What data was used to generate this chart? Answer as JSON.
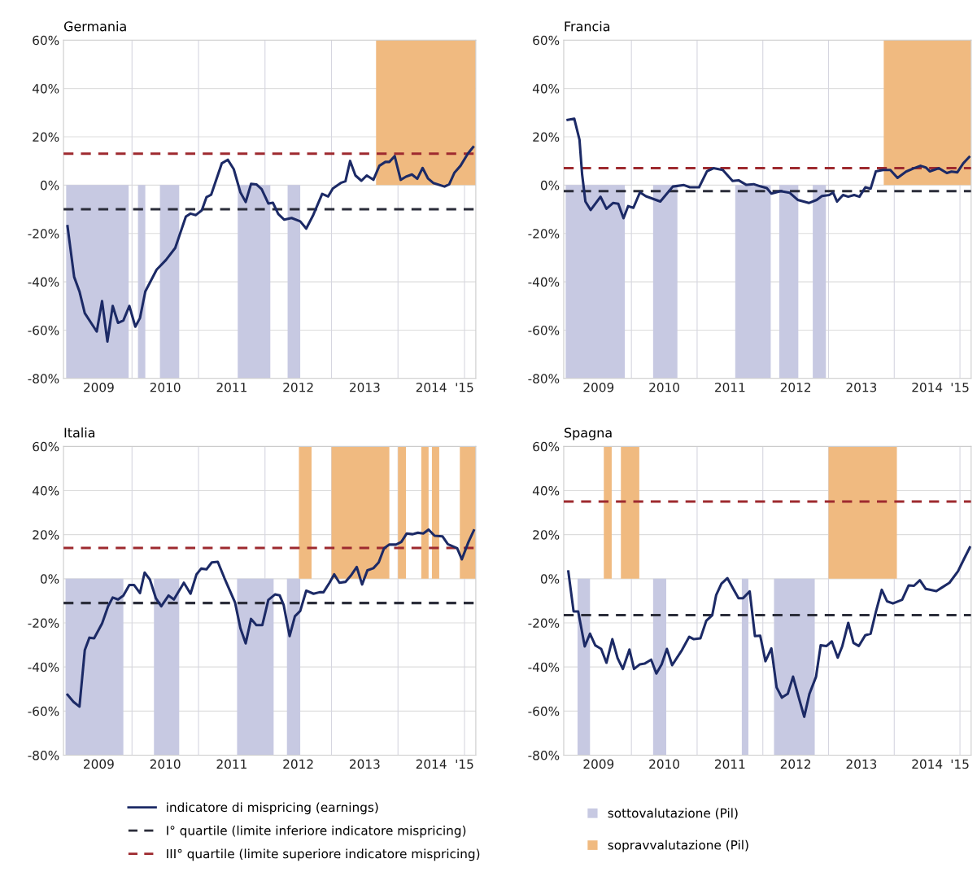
{
  "chart_data": [
    {
      "type": "line",
      "title": "Germania",
      "xlim": [
        2008.97,
        2015.17
      ],
      "ylim": [
        -80,
        60
      ],
      "xticks": [
        {
          "value": 2009.5,
          "label": "2009"
        },
        {
          "value": 2010.5,
          "label": "2010"
        },
        {
          "value": 2011.5,
          "label": "2011"
        },
        {
          "value": 2012.5,
          "label": "2012"
        },
        {
          "value": 2013.5,
          "label": "2013"
        },
        {
          "value": 2014.5,
          "label": "2014"
        },
        {
          "value": 2015,
          "label": "'15"
        },
        {
          "value": 2010,
          "label": null
        },
        {
          "value": 2011,
          "label": null
        },
        {
          "value": 2012,
          "label": null
        },
        {
          "value": 2013,
          "label": null
        },
        {
          "value": 2014,
          "label": null
        },
        {
          "value": 2015,
          "label": null
        }
      ],
      "yticks": [
        {
          "value": -80,
          "label": "-80%"
        },
        {
          "value": -60,
          "label": "-60%"
        },
        {
          "value": -40,
          "label": "-40%"
        },
        {
          "value": -20,
          "label": "-20%"
        },
        {
          "value": 0,
          "label": "0%"
        },
        {
          "value": 20,
          "label": "20%"
        },
        {
          "value": 40,
          "label": "40%"
        },
        {
          "value": 60,
          "label": "60%"
        }
      ],
      "grid": true,
      "legend": "bottom",
      "series": [
        {
          "type": "area",
          "name": "sottovalutazione (Pil)",
          "color": "#c7c9e2",
          "x": [
            2009.01,
            2009.01,
            2009.95,
            2009.95,
            2010.09,
            2010.09,
            2010.2,
            2010.2,
            2010.42,
            2010.42,
            2010.71,
            2010.71,
            2011.59,
            2011.59,
            2012.08,
            2012.08,
            2012.34,
            2012.34,
            2012.53,
            2012.53
          ],
          "values": [
            0,
            -80,
            -80,
            0,
            0,
            -80,
            -80,
            0,
            0,
            -80,
            -80,
            0,
            0,
            -80,
            -80,
            0,
            0,
            -80,
            -80,
            0
          ]
        },
        {
          "type": "area",
          "name": "sopravvalutazione (Pil)",
          "color": "#f0ba80",
          "x": [
            2013.67,
            2013.67,
            2015.17,
            2015.17
          ],
          "values": [
            0,
            60,
            60,
            0
          ]
        },
        {
          "name": "indicatore di mispricing (earnings)",
          "color": "#1c2a66",
          "x": [
            2009.03,
            2009.13,
            2009.21,
            2009.29,
            2009.47,
            2009.55,
            2009.63,
            2009.71,
            2009.79,
            2009.87,
            2009.96,
            2010.05,
            2010.12,
            2010.2,
            2010.37,
            2010.51,
            2010.65,
            2010.81,
            2010.88,
            2010.96,
            2011.05,
            2011.12,
            2011.19,
            2011.35,
            2011.44,
            2011.53,
            2011.63,
            2011.71,
            2011.79,
            2011.87,
            2011.95,
            2012.05,
            2012.12,
            2012.2,
            2012.29,
            2012.4,
            2012.53,
            2012.62,
            2012.72,
            2012.86,
            2012.95,
            2013.02,
            2013.14,
            2013.21,
            2013.28,
            2013.36,
            2013.45,
            2013.53,
            2013.63,
            2013.72,
            2013.81,
            2013.87,
            2013.95,
            2014.04,
            2014.12,
            2014.21,
            2014.29,
            2014.37,
            2014.45,
            2014.53,
            2014.7,
            2014.77,
            2014.85,
            2014.94,
            2015.05,
            2015.13
          ],
          "values": [
            -17,
            -38,
            -44,
            -53,
            -60.6,
            -48,
            -64.7,
            -50,
            -57,
            -56,
            -50,
            -58.6,
            -55,
            -44,
            -35,
            -31,
            -26,
            -13,
            -11.8,
            -12.4,
            -10.4,
            -5,
            -4,
            9,
            10.5,
            6.6,
            -3,
            -7,
            0.5,
            0.3,
            -1.7,
            -7.6,
            -7.3,
            -12,
            -14.3,
            -13.6,
            -15,
            -18,
            -12.7,
            -3.6,
            -4.7,
            -1.4,
            0.9,
            1.6,
            10,
            4,
            1.8,
            4,
            2.2,
            8,
            9.6,
            9.6,
            12,
            2.2,
            3.5,
            4.4,
            2.6,
            7.1,
            2.8,
            0.9,
            -0.6,
            0.3,
            5.2,
            8,
            13,
            15.7
          ]
        }
      ],
      "ref_lines": [
        {
          "axis": "y",
          "value": -10,
          "label": "I° quartile (limite inferiore indicatore mispricing)",
          "color": "#2b2d3a",
          "line_style": "dashed"
        },
        {
          "axis": "y",
          "value": 13,
          "label": "III° quartile (limite superiore indicatore mispricing)",
          "color": "#9e2a2f",
          "line_style": "dashed"
        }
      ]
    },
    {
      "type": "line",
      "title": "Francia",
      "xlim": [
        2008.97,
        2015.17
      ],
      "ylim": [
        -80,
        60
      ],
      "xticks": [
        {
          "value": 2009.5,
          "label": "2009"
        },
        {
          "value": 2010.5,
          "label": "2010"
        },
        {
          "value": 2011.5,
          "label": "2011"
        },
        {
          "value": 2012.5,
          "label": "2012"
        },
        {
          "value": 2013.5,
          "label": "2013"
        },
        {
          "value": 2014.5,
          "label": "2014"
        },
        {
          "value": 2015,
          "label": "'15"
        },
        {
          "value": 2010,
          "label": null
        },
        {
          "value": 2011,
          "label": null
        },
        {
          "value": 2012,
          "label": null
        },
        {
          "value": 2013,
          "label": null
        },
        {
          "value": 2014,
          "label": null
        },
        {
          "value": 2015,
          "label": null
        }
      ],
      "yticks": [
        {
          "value": -80,
          "label": "-80%"
        },
        {
          "value": -60,
          "label": "-60%"
        },
        {
          "value": -40,
          "label": "-40%"
        },
        {
          "value": -20,
          "label": "-20%"
        },
        {
          "value": 0,
          "label": "0%"
        },
        {
          "value": 20,
          "label": "20%"
        },
        {
          "value": 40,
          "label": "40%"
        },
        {
          "value": 60,
          "label": "60%"
        }
      ],
      "grid": true,
      "series": [
        {
          "type": "area",
          "color": "#c7c9e2",
          "x": [
            2009.0,
            2009.0,
            2009.9,
            2009.9,
            2010.33,
            2010.33,
            2010.7,
            2010.7,
            2011.58,
            2011.58,
            2012.12,
            2012.12,
            2012.25,
            2012.25,
            2012.54,
            2012.54,
            2012.76,
            2012.76,
            2012.96,
            2012.96
          ],
          "values": [
            0,
            -80,
            -80,
            0,
            0,
            -80,
            -80,
            0,
            0,
            -80,
            -80,
            0,
            0,
            -80,
            -80,
            0,
            0,
            -80,
            -80,
            0
          ]
        },
        {
          "type": "area",
          "color": "#f0ba80",
          "x": [
            2013.84,
            2013.84,
            2015.17,
            2015.17
          ],
          "values": [
            0,
            60,
            60,
            0
          ]
        },
        {
          "color": "#1c2a66",
          "x": [
            2009.03,
            2009.13,
            2009.21,
            2009.25,
            2009.3,
            2009.38,
            2009.53,
            2009.62,
            2009.72,
            2009.8,
            2009.88,
            2009.95,
            2010.03,
            2010.13,
            2010.22,
            2010.44,
            2010.52,
            2010.63,
            2010.8,
            2010.89,
            2011.03,
            2011.15,
            2011.25,
            2011.39,
            2011.54,
            2011.63,
            2011.75,
            2011.86,
            2011.96,
            2012.06,
            2012.13,
            2012.27,
            2012.41,
            2012.53,
            2012.7,
            2012.82,
            2012.9,
            2013.01,
            2013.07,
            2013.13,
            2013.22,
            2013.3,
            2013.39,
            2013.47,
            2013.56,
            2013.64,
            2013.72,
            2013.83,
            2013.94,
            2014.05,
            2014.18,
            2014.3,
            2014.4,
            2014.48,
            2014.54,
            2014.68,
            2014.8,
            2014.87,
            2014.96,
            2015.05,
            2015.14
          ],
          "values": [
            27,
            27.5,
            18.8,
            4.4,
            -6.8,
            -10.3,
            -4.8,
            -9.8,
            -7.4,
            -7.7,
            -13.7,
            -8.7,
            -9.4,
            -3,
            -4.6,
            -6.8,
            -4.2,
            -0.6,
            0,
            -0.9,
            -0.9,
            5.7,
            7,
            6.3,
            1.7,
            2,
            0.1,
            0.4,
            -0.5,
            -1.2,
            -3.5,
            -2.5,
            -3.2,
            -6.1,
            -7.4,
            -6.1,
            -4.5,
            -4.1,
            -3.1,
            -6.8,
            -4.1,
            -4.8,
            -4.1,
            -4.8,
            -0.9,
            -1.5,
            5.7,
            6.3,
            6.3,
            3,
            5.6,
            7,
            8,
            7.3,
            5.7,
            7,
            5,
            5.6,
            5.3,
            9,
            11.6
          ]
        }
      ],
      "ref_lines": [
        {
          "axis": "y",
          "value": -2.5,
          "color": "#2b2d3a",
          "line_style": "dashed"
        },
        {
          "axis": "y",
          "value": 7,
          "color": "#9e2a2f",
          "line_style": "dashed"
        }
      ]
    },
    {
      "type": "line",
      "title": "Italia",
      "xlim": [
        2008.97,
        2015.17
      ],
      "ylim": [
        -80,
        60
      ],
      "xticks": [
        {
          "value": 2009.5,
          "label": "2009"
        },
        {
          "value": 2010.5,
          "label": "2010"
        },
        {
          "value": 2011.5,
          "label": "2011"
        },
        {
          "value": 2012.5,
          "label": "2012"
        },
        {
          "value": 2013.5,
          "label": "2013"
        },
        {
          "value": 2014.5,
          "label": "2014"
        },
        {
          "value": 2015,
          "label": "'15"
        },
        {
          "value": 2010,
          "label": null
        },
        {
          "value": 2011,
          "label": null
        },
        {
          "value": 2012,
          "label": null
        },
        {
          "value": 2013,
          "label": null
        },
        {
          "value": 2014,
          "label": null
        },
        {
          "value": 2015,
          "label": null
        }
      ],
      "yticks": [
        {
          "value": -80,
          "label": "-80%"
        },
        {
          "value": -60,
          "label": "-60%"
        },
        {
          "value": -40,
          "label": "-40%"
        },
        {
          "value": -20,
          "label": "-20%"
        },
        {
          "value": 0,
          "label": "0%"
        },
        {
          "value": 20,
          "label": "20%"
        },
        {
          "value": 40,
          "label": "40%"
        },
        {
          "value": 60,
          "label": "60%"
        }
      ],
      "grid": true,
      "series": [
        {
          "type": "area",
          "color": "#c7c9e2",
          "x": [
            2009.0,
            2009.0,
            2009.87,
            2009.87,
            2010.33,
            2010.33,
            2010.71,
            2010.71,
            2011.58,
            2011.58,
            2012.13,
            2012.13,
            2012.33,
            2012.33,
            2012.53,
            2012.53
          ],
          "values": [
            0,
            -80,
            -80,
            0,
            0,
            -80,
            -80,
            0,
            0,
            -80,
            -80,
            0,
            0,
            -80,
            -80,
            0
          ]
        },
        {
          "type": "area",
          "color": "#f0ba80",
          "x": [
            2012.51,
            2012.51,
            2012.7,
            2012.7,
            2013.0,
            2013.0,
            2013.87,
            2013.87,
            2014.0,
            2014.0,
            2014.12,
            2014.12,
            2014.35,
            2014.35,
            2014.46,
            2014.46,
            2014.51,
            2014.51,
            2014.62,
            2014.62,
            2014.93,
            2014.93,
            2015.17,
            2015.17
          ],
          "values": [
            0,
            60,
            60,
            0,
            0,
            60,
            60,
            0,
            0,
            60,
            60,
            0,
            0,
            60,
            60,
            0,
            0,
            60,
            60,
            0,
            0,
            60,
            60,
            0
          ]
        },
        {
          "color": "#1c2a66",
          "x": [
            2009.03,
            2009.12,
            2009.21,
            2009.29,
            2009.36,
            2009.43,
            2009.55,
            2009.64,
            2009.71,
            2009.79,
            2009.87,
            2009.96,
            2010.03,
            2010.12,
            2010.19,
            2010.27,
            2010.36,
            2010.44,
            2010.55,
            2010.63,
            2010.78,
            2010.88,
            2010.97,
            2011.04,
            2011.12,
            2011.2,
            2011.29,
            2011.39,
            2011.55,
            2011.63,
            2011.71,
            2011.79,
            2011.87,
            2011.96,
            2012.05,
            2012.15,
            2012.22,
            2012.28,
            2012.37,
            2012.45,
            2012.53,
            2012.62,
            2012.73,
            2012.82,
            2012.88,
            2012.97,
            2013.04,
            2013.12,
            2013.21,
            2013.29,
            2013.38,
            2013.46,
            2013.54,
            2013.63,
            2013.71,
            2013.79,
            2013.87,
            2013.97,
            2014.05,
            2014.13,
            2014.22,
            2014.3,
            2014.38,
            2014.46,
            2014.55,
            2014.67,
            2014.75,
            2014.89,
            2014.96,
            2015.06,
            2015.14
          ],
          "values": [
            -52.6,
            -55.8,
            -58,
            -32.4,
            -26.7,
            -27,
            -20.3,
            -12.5,
            -8.5,
            -9.4,
            -7.6,
            -2.8,
            -2.8,
            -6.5,
            2.8,
            -0.4,
            -8.9,
            -12.5,
            -7.6,
            -9.4,
            -1.8,
            -6.8,
            2,
            4.6,
            4.3,
            7.4,
            7.7,
            0.3,
            -10.8,
            -22.4,
            -29.3,
            -18.2,
            -21,
            -21,
            -9.6,
            -7.1,
            -7.5,
            -11.8,
            -26,
            -17,
            -14.6,
            -5.4,
            -6.8,
            -6.1,
            -6.1,
            -1.8,
            2,
            -1.8,
            -1.4,
            1.4,
            5.3,
            -2.6,
            3.8,
            4.8,
            7.4,
            13.8,
            15.5,
            15.5,
            16.7,
            20.5,
            20.2,
            20.9,
            20.5,
            22.3,
            19.5,
            19.2,
            15.7,
            13.8,
            8.8,
            16.7,
            21.9
          ]
        }
      ],
      "ref_lines": [
        {
          "axis": "y",
          "value": -11,
          "color": "#2b2d3a",
          "line_style": "dashed"
        },
        {
          "axis": "y",
          "value": 14,
          "color": "#9e2a2f",
          "line_style": "dashed"
        }
      ]
    },
    {
      "type": "line",
      "title": "Spagna",
      "xlim": [
        2008.97,
        2015.17
      ],
      "ylim": [
        -80,
        60
      ],
      "xticks": [
        {
          "value": 2009.5,
          "label": "2009"
        },
        {
          "value": 2010.5,
          "label": "2010"
        },
        {
          "value": 2011.5,
          "label": "2011"
        },
        {
          "value": 2012.5,
          "label": "2012"
        },
        {
          "value": 2013.5,
          "label": "2013"
        },
        {
          "value": 2014.5,
          "label": "2014"
        },
        {
          "value": 2015,
          "label": "'15"
        },
        {
          "value": 2010,
          "label": null
        },
        {
          "value": 2011,
          "label": null
        },
        {
          "value": 2012,
          "label": null
        },
        {
          "value": 2013,
          "label": null
        },
        {
          "value": 2014,
          "label": null
        },
        {
          "value": 2015,
          "label": null
        }
      ],
      "yticks": [
        {
          "value": -80,
          "label": "-80%"
        },
        {
          "value": -60,
          "label": "-60%"
        },
        {
          "value": -40,
          "label": "-40%"
        },
        {
          "value": -20,
          "label": "-20%"
        },
        {
          "value": 0,
          "label": "0%"
        },
        {
          "value": 20,
          "label": "20%"
        },
        {
          "value": 40,
          "label": "40%"
        },
        {
          "value": 60,
          "label": "60%"
        }
      ],
      "grid": true,
      "series": [
        {
          "type": "area",
          "color": "#c7c9e2",
          "x": [
            2009.18,
            2009.18,
            2009.37,
            2009.37,
            2010.33,
            2010.33,
            2010.53,
            2010.53,
            2011.68,
            2011.68,
            2011.78,
            2011.78,
            2012.17,
            2012.17,
            2012.79,
            2012.79
          ],
          "values": [
            0,
            -80,
            -80,
            0,
            0,
            -80,
            -80,
            0,
            0,
            -80,
            -80,
            0,
            0,
            -80,
            -80,
            0
          ]
        },
        {
          "type": "area",
          "color": "#f0ba80",
          "x": [
            2009.58,
            2009.58,
            2009.7,
            2009.7,
            2009.84,
            2009.84,
            2010.12,
            2010.12,
            2013.0,
            2013.0,
            2014.04,
            2014.04
          ],
          "values": [
            0,
            60,
            60,
            0,
            0,
            60,
            60,
            0,
            0,
            60,
            60,
            0
          ]
        },
        {
          "color": "#1c2a66",
          "x": [
            2009.04,
            2009.12,
            2009.19,
            2009.29,
            2009.37,
            2009.45,
            2009.54,
            2009.62,
            2009.71,
            2009.79,
            2009.87,
            2009.97,
            2010.04,
            2010.13,
            2010.2,
            2010.3,
            2010.38,
            2010.46,
            2010.54,
            2010.62,
            2010.77,
            2010.88,
            2010.95,
            2011.05,
            2011.14,
            2011.23,
            2011.29,
            2011.37,
            2011.46,
            2011.55,
            2011.63,
            2011.7,
            2011.8,
            2011.88,
            2011.96,
            2012.04,
            2012.13,
            2012.21,
            2012.29,
            2012.38,
            2012.46,
            2012.55,
            2012.63,
            2012.71,
            2012.81,
            2012.88,
            2012.97,
            2013.05,
            2013.14,
            2013.21,
            2013.3,
            2013.38,
            2013.46,
            2013.56,
            2013.64,
            2013.72,
            2013.81,
            2013.89,
            2013.98,
            2014.12,
            2014.22,
            2014.3,
            2014.39,
            2014.48,
            2014.64,
            2014.73,
            2014.84,
            2014.97,
            2015.06,
            2015.15
          ],
          "values": [
            3.3,
            -14.8,
            -14.8,
            -30.7,
            -24.9,
            -30.2,
            -31.8,
            -38.1,
            -27.4,
            -36,
            -40.9,
            -32.1,
            -40.9,
            -38.8,
            -38.5,
            -36.7,
            -43,
            -38.8,
            -31.8,
            -39.2,
            -32.3,
            -26.3,
            -27.4,
            -27,
            -19,
            -16.5,
            -7.4,
            -2.2,
            0.3,
            -4.6,
            -8.8,
            -8.8,
            -5.7,
            -26,
            -25.8,
            -37.4,
            -31.6,
            -49.3,
            -53.9,
            -52.1,
            -44.4,
            -54.2,
            -62.6,
            -52.1,
            -44.4,
            -30.2,
            -30.5,
            -28.4,
            -35.8,
            -30.5,
            -20,
            -29.1,
            -30.5,
            -25.6,
            -24.9,
            -15.1,
            -5,
            -10.2,
            -11.2,
            -9.5,
            -3,
            -3.2,
            -0.7,
            -4.6,
            -5.6,
            -3.9,
            -1.8,
            3.4,
            8.9,
            14.2
          ]
        }
      ],
      "ref_lines": [
        {
          "axis": "y",
          "value": -16.5,
          "color": "#2b2d3a",
          "line_style": "dashed"
        },
        {
          "axis": "y",
          "value": 35,
          "color": "#9e2a2f",
          "line_style": "dashed"
        }
      ]
    }
  ]
}
